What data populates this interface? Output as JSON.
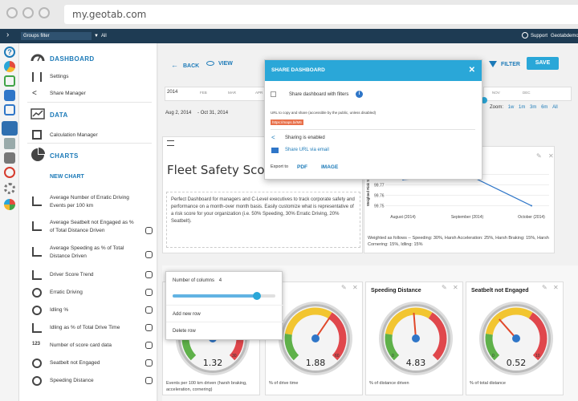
{
  "browser": {
    "url": "my.geotab.com"
  },
  "topbar": {
    "groups_filter": "Groups filter",
    "group_value": "All",
    "support": "Support",
    "user": "Geotabdemo"
  },
  "sidebar": {
    "dashboard_label": "DASHBOARD",
    "settings": "Settings",
    "share_manager": "Share Manager",
    "data_label": "DATA",
    "calculation_manager": "Calculation Manager",
    "charts_label": "CHARTS",
    "new_chart": "NEW CHART",
    "charts": [
      "Average Number of Erratic Driving Events per 100 km",
      "Average Seatbelt not Engaged as % of Total Distance Driven",
      "Average Speeding as % of Total Distance Driven",
      "Driver Score Trend",
      "Erratic Driving",
      "Idling %",
      "Idling as % of Total Drive Time",
      "Number of score card data",
      "Seatbelt not Engaged",
      "Speeding Distance"
    ],
    "number_icon_text": "123"
  },
  "toolbar": {
    "back": "BACK",
    "view": "VIEW",
    "filter": "FILTER",
    "save": "SAVE"
  },
  "timeline": {
    "year": "2014",
    "months_left": [
      "FEB",
      "MAR",
      "APR"
    ],
    "months_right": [
      "NOV",
      "DEC"
    ],
    "date_from": "Aug 2, 2014",
    "date_to": "Oct 31, 2014",
    "zoom_label": "Zoom:",
    "zoom_options": [
      "1w",
      "1m",
      "3m",
      "6m",
      "All"
    ]
  },
  "modal": {
    "title": "SHARE DASHBOARD",
    "share_with_filters": "Share dashboard with filters",
    "url_note": "URL to copy and share (accessible by the public, unless disabled)",
    "url_value": "https://maps.bi/M6",
    "sharing_enabled": "Sharing is enabled",
    "share_email": "Share URL via email",
    "export_to": "Export to",
    "pdf": "PDF",
    "image": "IMAGE"
  },
  "fleet_card": {
    "title": "Fleet Safety Score",
    "description": "Perfect Dashboard for managers and C-Level executives to track corporate safety and performance on a month-over month basis. Easily customize what is representative of a risk score for your organization (i.e. 50% Speeding, 30% Erratic Driving, 20% Seatbelt)."
  },
  "line_card": {
    "ylabel": "Weighted Risk Score",
    "caption": "Weighted as follows -- Speeding: 30%, Harsh Acceleration: 25%, Harsh Braking: 15%, Harsh Cornering: 15%, Idling: 15%",
    "chart_data": {
      "type": "line",
      "categories": [
        "August (2014)",
        "September (2014)",
        "October (2014)"
      ],
      "values": [
        99.775,
        99.78,
        99.75
      ],
      "yticks": [
        "99.78",
        "99.77",
        "99.76",
        "99.75"
      ],
      "ylim": [
        99.745,
        99.785
      ],
      "color": "#2f76c8"
    }
  },
  "popup": {
    "columns_label": "Number of columns",
    "columns_value": "4",
    "slider_fraction": 0.82,
    "add_row": "Add new row",
    "delete_row": "Delete row"
  },
  "gauges": [
    {
      "title": "",
      "value": "1.32",
      "needle": 1.32,
      "max": 4,
      "scale_low": "",
      "scale_high": "30",
      "caption": "Events per 100 km driven (harsh braking, acceleration, cornering)"
    },
    {
      "title": "g %",
      "value": "1.88",
      "needle": 1.88,
      "max": 3,
      "scale_low": "",
      "scale_high": "60",
      "caption": "% of drive time"
    },
    {
      "title": "Speeding Distance",
      "value": "4.83",
      "needle": 4.83,
      "max": 10,
      "scale_low": "0",
      "scale_high": "",
      "caption": "% of distance driven"
    },
    {
      "title": "Seatbelt not Engaged",
      "value": "0.52",
      "needle": 0.52,
      "max": 1.5,
      "scale_low": "0",
      "scale_high": "10",
      "caption": "% of total distance"
    }
  ],
  "colors": {
    "accent": "#1c7ab8",
    "topbar": "#1e3b53",
    "modal_header": "#2aa7d8",
    "save": "#2aa7d8"
  }
}
